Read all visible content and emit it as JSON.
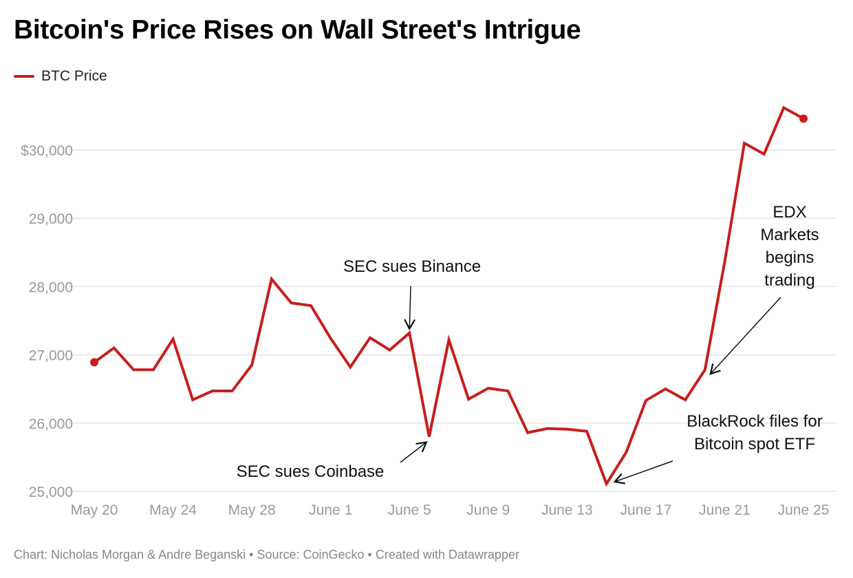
{
  "chart_data": {
    "type": "line",
    "title": "Bitcoin's Price Rises on Wall Street's Intrigue",
    "xlabel": "",
    "ylabel": "",
    "x": [
      "May 20",
      "May 21",
      "May 22",
      "May 23",
      "May 24",
      "May 25",
      "May 26",
      "May 27",
      "May 28",
      "May 29",
      "May 30",
      "May 31",
      "June 1",
      "June 2",
      "June 3",
      "June 4",
      "June 5",
      "June 6",
      "June 7",
      "June 8",
      "June 9",
      "June 10",
      "June 11",
      "June 12",
      "June 13",
      "June 14",
      "June 15",
      "June 16",
      "June 17",
      "June 18",
      "June 19",
      "June 20",
      "June 21",
      "June 22",
      "June 23",
      "June 24",
      "June 25"
    ],
    "series": [
      {
        "name": "BTC Price",
        "color": "#c71e1d",
        "values": [
          26890,
          27100,
          26780,
          26780,
          27230,
          26340,
          26470,
          26470,
          26850,
          28110,
          27760,
          27720,
          27240,
          26820,
          27250,
          27070,
          27320,
          25800,
          27220,
          26350,
          26510,
          26470,
          25860,
          25920,
          25910,
          25880,
          25110,
          25570,
          26330,
          26500,
          26340,
          26780,
          28360,
          30100,
          29940,
          30620,
          30460
        ]
      }
    ],
    "x_tick_labels": [
      "May 20",
      "May 24",
      "May 28",
      "June 1",
      "June 5",
      "June 9",
      "June 13",
      "June 17",
      "June 21",
      "June 25"
    ],
    "y_ticks": [
      25000,
      26000,
      27000,
      28000,
      29000,
      30000
    ],
    "y_tick_labels": [
      "25,000",
      "26,000",
      "27,000",
      "28,000",
      "29,000",
      "$30,000"
    ],
    "ylim": [
      25000,
      30800
    ],
    "grid": "horizontal",
    "legend": "top-left",
    "annotations": [
      {
        "lines": [
          "SEC sues Binance"
        ],
        "date": "June 5"
      },
      {
        "lines": [
          "SEC sues Coinbase"
        ],
        "date": "June 6"
      },
      {
        "lines": [
          "BlackRock files for",
          "Bitcoin spot ETF"
        ],
        "date": "June 15"
      },
      {
        "lines": [
          "EDX",
          "Markets",
          "begins",
          "trading"
        ],
        "date": "June 20"
      }
    ]
  },
  "legend_label": "BTC Price",
  "footer": "Chart: Nicholas Morgan & Andre Beganski • Source: CoinGecko • Created with Datawrapper"
}
